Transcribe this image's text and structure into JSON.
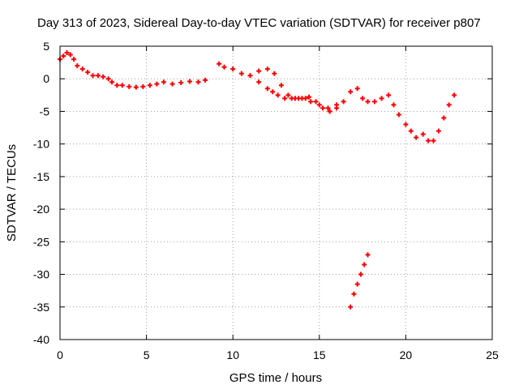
{
  "chart_data": {
    "type": "scatter",
    "title": "Day 313 of 2023, Sidereal Day-to-day VTEC variation (SDTVAR) for receiver p807",
    "xlabel": "GPS time / hours",
    "ylabel": "SDTVAR / TECUs",
    "xlim": [
      0,
      25
    ],
    "ylim": [
      -40,
      5
    ],
    "xticks": [
      0,
      5,
      10,
      15,
      20,
      25
    ],
    "yticks": [
      5,
      0,
      -5,
      -10,
      -15,
      -20,
      -25,
      -30,
      -35,
      -40
    ],
    "grid": true,
    "marker": "plus",
    "color": "#ff0000",
    "series": [
      {
        "name": "main-arc",
        "x": [
          0.0,
          0.2,
          0.4,
          0.6,
          0.8,
          1.0,
          1.3,
          1.6,
          1.9,
          2.2,
          2.5,
          2.8,
          3.0,
          3.3,
          3.6,
          4.0,
          4.4,
          4.8,
          5.2,
          5.6,
          6.0,
          6.5,
          7.0,
          7.5,
          8.0,
          8.4,
          9.2,
          9.5,
          10.0,
          10.5,
          11.0,
          11.5,
          12.0,
          12.4,
          12.8,
          13.2,
          13.6,
          14.0,
          14.4,
          14.8,
          15.2,
          15.6,
          16.0,
          16.4,
          16.8,
          17.2,
          17.5,
          17.8,
          18.2,
          18.6,
          19.0,
          19.3,
          19.6,
          20.0,
          20.3,
          20.6,
          21.0,
          21.3,
          21.6,
          21.9,
          22.2,
          22.5,
          22.8
        ],
        "y": [
          3.0,
          3.5,
          4.0,
          3.7,
          3.0,
          2.0,
          1.5,
          1.0,
          0.5,
          0.5,
          0.3,
          0.0,
          -0.5,
          -1.0,
          -1.0,
          -1.2,
          -1.3,
          -1.2,
          -1.0,
          -0.8,
          -0.5,
          -0.8,
          -0.6,
          -0.4,
          -0.5,
          -0.2,
          2.3,
          1.8,
          1.5,
          0.8,
          0.5,
          1.2,
          1.5,
          0.8,
          -1.0,
          -2.5,
          -3.0,
          -3.0,
          -2.8,
          -3.5,
          -4.5,
          -5.0,
          -4.5,
          -3.5,
          -2.0,
          -1.5,
          -3.0,
          -3.5,
          -3.5,
          -3.0,
          -2.5,
          -4.0,
          -5.5,
          -7.0,
          -8.0,
          -9.0,
          -8.5,
          -9.5,
          -9.5,
          -8.0,
          -6.0,
          -4.0,
          -2.5
        ]
      },
      {
        "name": "secondary-arc",
        "x": [
          11.5,
          12.0,
          12.3,
          12.6,
          13.0,
          13.4,
          13.8,
          14.2,
          14.5,
          15.0,
          15.5,
          16.0
        ],
        "y": [
          -0.5,
          -1.5,
          -2.0,
          -2.5,
          -3.0,
          -3.0,
          -3.0,
          -3.0,
          -3.5,
          -4.0,
          -4.5,
          -4.0
        ]
      },
      {
        "name": "drop-segment",
        "x": [
          16.8,
          17.0,
          17.2,
          17.4,
          17.6,
          17.8
        ],
        "y": [
          -35.0,
          -33.0,
          -31.5,
          -30.0,
          -28.5,
          -27.0
        ]
      }
    ]
  }
}
